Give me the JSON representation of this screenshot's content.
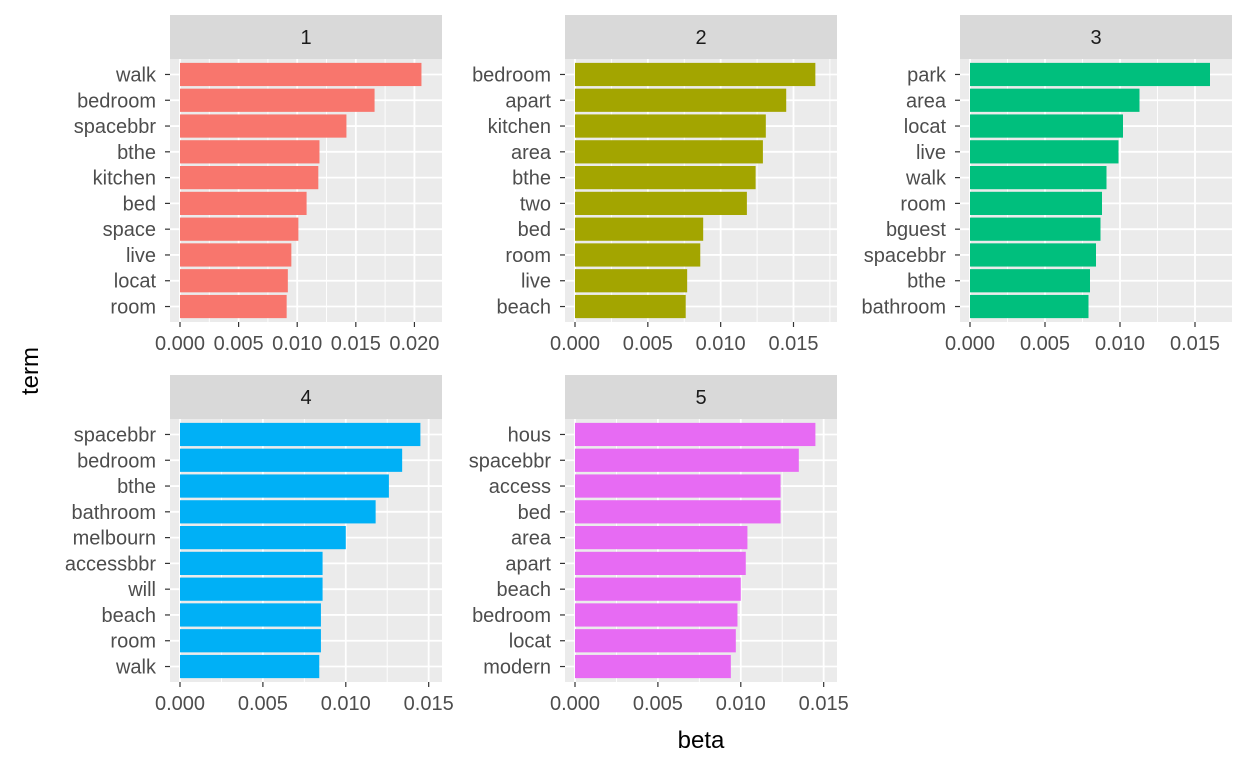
{
  "chart_data": {
    "type": "bar",
    "orientation": "horizontal",
    "xlabel": "beta",
    "ylabel": "term",
    "grid": true,
    "legend": "none",
    "facets": [
      {
        "label": "1",
        "color": "#F8766D",
        "xlim": [
          0,
          0.0215
        ],
        "ticks": [
          "0.000",
          "0.005",
          "0.010",
          "0.015",
          "0.020"
        ],
        "tick_values": [
          0,
          0.005,
          0.01,
          0.015,
          0.02
        ],
        "terms": [
          "walk",
          "bedroom",
          "spacebbr",
          "bthe",
          "kitchen",
          "bed",
          "space",
          "live",
          "locat",
          "room"
        ],
        "values": [
          0.0206,
          0.0166,
          0.0142,
          0.0119,
          0.0118,
          0.0108,
          0.0101,
          0.0095,
          0.0092,
          0.0091
        ]
      },
      {
        "label": "2",
        "color": "#A3A500",
        "xlim": [
          0,
          0.0173
        ],
        "ticks": [
          "0.000",
          "0.005",
          "0.010",
          "0.015"
        ],
        "tick_values": [
          0,
          0.005,
          0.01,
          0.015
        ],
        "terms": [
          "bedroom",
          "apart",
          "kitchen",
          "area",
          "bthe",
          "two",
          "bed",
          "room",
          "live",
          "beach"
        ],
        "values": [
          0.0165,
          0.0145,
          0.0131,
          0.0129,
          0.0124,
          0.0118,
          0.0088,
          0.0086,
          0.0077,
          0.0076
        ]
      },
      {
        "label": "3",
        "color": "#00BF7D",
        "xlim": [
          0,
          0.0168
        ],
        "ticks": [
          "0.000",
          "0.005",
          "0.010",
          "0.015"
        ],
        "tick_values": [
          0,
          0.005,
          0.01,
          0.015
        ],
        "terms": [
          "park",
          "area",
          "locat",
          "live",
          "walk",
          "room",
          "bguest",
          "spacebbr",
          "bthe",
          "bathroom"
        ],
        "values": [
          0.016,
          0.0113,
          0.0102,
          0.0099,
          0.0091,
          0.0088,
          0.0087,
          0.0084,
          0.008,
          0.0079
        ]
      },
      {
        "label": "4",
        "color": "#00B0F6",
        "xlim": [
          0,
          0.0152
        ],
        "ticks": [
          "0.000",
          "0.005",
          "0.010",
          "0.015"
        ],
        "tick_values": [
          0,
          0.005,
          0.01,
          0.015
        ],
        "terms": [
          "spacebbr",
          "bedroom",
          "bthe",
          "bathroom",
          "melbourn",
          "accessbbr",
          "will",
          "beach",
          "room",
          "walk"
        ],
        "values": [
          0.0145,
          0.0134,
          0.0126,
          0.0118,
          0.01,
          0.0086,
          0.0086,
          0.0085,
          0.0085,
          0.0084
        ]
      },
      {
        "label": "5",
        "color": "#E76BF3",
        "xlim": [
          0,
          0.0152
        ],
        "ticks": [
          "0.000",
          "0.005",
          "0.010",
          "0.015"
        ],
        "tick_values": [
          0,
          0.005,
          0.01,
          0.015
        ],
        "terms": [
          "hous",
          "spacebbr",
          "access",
          "bed",
          "area",
          "apart",
          "beach",
          "bedroom",
          "locat",
          "modern"
        ],
        "values": [
          0.0145,
          0.0135,
          0.0124,
          0.0124,
          0.0104,
          0.0103,
          0.01,
          0.0098,
          0.0097,
          0.0094
        ]
      }
    ]
  }
}
